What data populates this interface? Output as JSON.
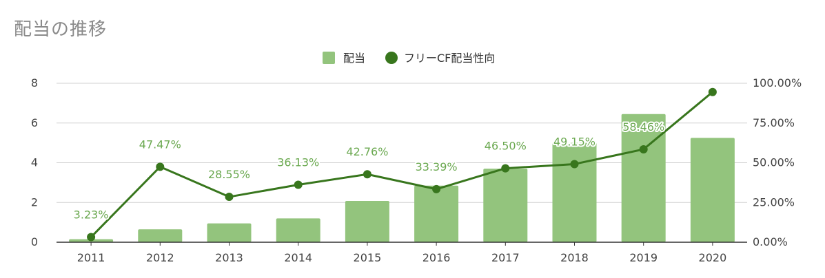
{
  "chart_data": {
    "type": "bar",
    "title": "配当の推移",
    "categories": [
      "2011",
      "2012",
      "2013",
      "2014",
      "2015",
      "2016",
      "2017",
      "2018",
      "2019",
      "2020"
    ],
    "series": [
      {
        "name": "配当",
        "type": "bar",
        "axis": "left",
        "color": "#93c47d",
        "values": [
          0.15,
          0.65,
          0.95,
          1.2,
          2.08,
          2.85,
          3.7,
          5.0,
          6.45,
          5.25
        ]
      },
      {
        "name": "フリーCF配当性向",
        "type": "line",
        "axis": "right",
        "color": "#38761d",
        "values": [
          3.23,
          47.47,
          28.55,
          36.13,
          42.76,
          33.39,
          46.5,
          49.15,
          58.46,
          94.5
        ],
        "labels": [
          "3.23%",
          "47.47%",
          "28.55%",
          "36.13%",
          "42.76%",
          "33.39%",
          "46.50%",
          "49.15%",
          "58.46%",
          ""
        ]
      }
    ],
    "y_left": {
      "ylim": [
        0,
        8
      ],
      "ticks": [
        "0",
        "2",
        "4",
        "6",
        "8"
      ]
    },
    "y_right": {
      "ylim": [
        0,
        100
      ],
      "ticks": [
        "0.00%",
        "25.00%",
        "50.00%",
        "75.00%",
        "100.00%"
      ]
    },
    "legend": "top-center",
    "grid": true
  }
}
